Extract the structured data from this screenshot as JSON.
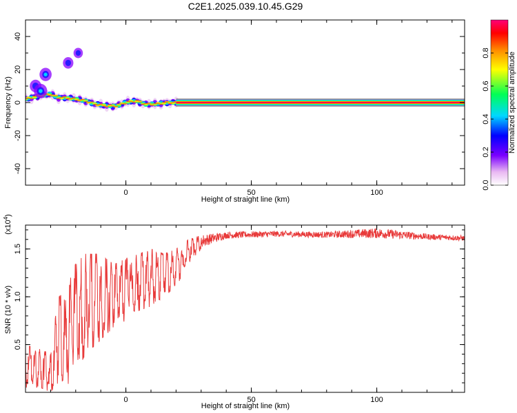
{
  "title": "C2E1.2025.039.10.45.G29",
  "chart_data": [
    {
      "type": "heatmap",
      "xlabel": "Height of straight line (km)",
      "ylabel": "Frequency (Hz)",
      "xlim": [
        -40,
        135
      ],
      "ylim": [
        -50,
        50
      ],
      "xticks": [
        "0",
        "50",
        "100"
      ],
      "yticks": [
        "-40",
        "-20",
        "0",
        "20",
        "40"
      ],
      "colorbar": {
        "label": "Normalized spectral amplitude",
        "ticks": [
          "0.0",
          "0.2",
          "0.4",
          "0.6",
          "0.8"
        ],
        "range": [
          0,
          1
        ]
      },
      "ridge": [
        {
          "x": -40,
          "y": 2
        },
        {
          "x": -35,
          "y": 4
        },
        {
          "x": -30,
          "y": 5
        },
        {
          "x": -27,
          "y": 3
        },
        {
          "x": -24,
          "y": 3
        },
        {
          "x": -20,
          "y": 2
        },
        {
          "x": -16,
          "y": 1
        },
        {
          "x": -12,
          "y": -1
        },
        {
          "x": -8,
          "y": -2
        },
        {
          "x": -4,
          "y": -2
        },
        {
          "x": 0,
          "y": 0
        },
        {
          "x": 4,
          "y": 1
        },
        {
          "x": 8,
          "y": -1
        },
        {
          "x": 12,
          "y": -1
        },
        {
          "x": 16,
          "y": 0
        },
        {
          "x": 20,
          "y": 0
        },
        {
          "x": 135,
          "y": 0
        }
      ],
      "blobs": [
        {
          "x": -36,
          "y": 10,
          "amp": 0.3
        },
        {
          "x": -32,
          "y": 17,
          "amp": 0.35
        },
        {
          "x": -34,
          "y": 7,
          "amp": 0.45
        },
        {
          "x": -23,
          "y": 24,
          "amp": 0.2
        },
        {
          "x": -19,
          "y": 30,
          "amp": 0.1
        }
      ],
      "grid": false
    },
    {
      "type": "line",
      "xlabel": "Height of straight line (km)",
      "ylabel": "SNR (10 * v/v)",
      "multiplier": "(x10",
      "multiplier_exp": "4",
      "multiplier_close": ")",
      "xlim": [
        -40,
        135
      ],
      "ylim": [
        0,
        1.75
      ],
      "xticks": [
        "0",
        "50",
        "100"
      ],
      "yticks": [
        "0.5",
        "1.0",
        "1.5"
      ],
      "series_color": "#e83a3a",
      "envelope": [
        {
          "x": -40,
          "lo": 0.05,
          "hi": 0.5
        },
        {
          "x": -34,
          "lo": 0.05,
          "hi": 0.45
        },
        {
          "x": -30,
          "lo": 0.0,
          "hi": 0.4
        },
        {
          "x": -27,
          "lo": 0.1,
          "hi": 1.0
        },
        {
          "x": -24,
          "lo": 0.05,
          "hi": 1.05
        },
        {
          "x": -20,
          "lo": 0.2,
          "hi": 1.35
        },
        {
          "x": -16,
          "lo": 0.4,
          "hi": 1.45
        },
        {
          "x": -12,
          "lo": 0.5,
          "hi": 1.45
        },
        {
          "x": -8,
          "lo": 0.6,
          "hi": 1.4
        },
        {
          "x": -4,
          "lo": 0.7,
          "hi": 1.35
        },
        {
          "x": 0,
          "lo": 0.75,
          "hi": 1.4
        },
        {
          "x": 5,
          "lo": 0.85,
          "hi": 1.45
        },
        {
          "x": 10,
          "lo": 0.9,
          "hi": 1.5
        },
        {
          "x": 15,
          "lo": 1.0,
          "hi": 1.45
        },
        {
          "x": 20,
          "lo": 1.1,
          "hi": 1.5
        },
        {
          "x": 25,
          "lo": 1.35,
          "hi": 1.6
        },
        {
          "x": 30,
          "lo": 1.5,
          "hi": 1.65
        },
        {
          "x": 40,
          "lo": 1.6,
          "hi": 1.68
        },
        {
          "x": 60,
          "lo": 1.62,
          "hi": 1.69
        },
        {
          "x": 80,
          "lo": 1.61,
          "hi": 1.68
        },
        {
          "x": 100,
          "lo": 1.6,
          "hi": 1.72
        },
        {
          "x": 120,
          "lo": 1.59,
          "hi": 1.66
        },
        {
          "x": 135,
          "lo": 1.58,
          "hi": 1.64
        }
      ],
      "grid": false
    }
  ]
}
